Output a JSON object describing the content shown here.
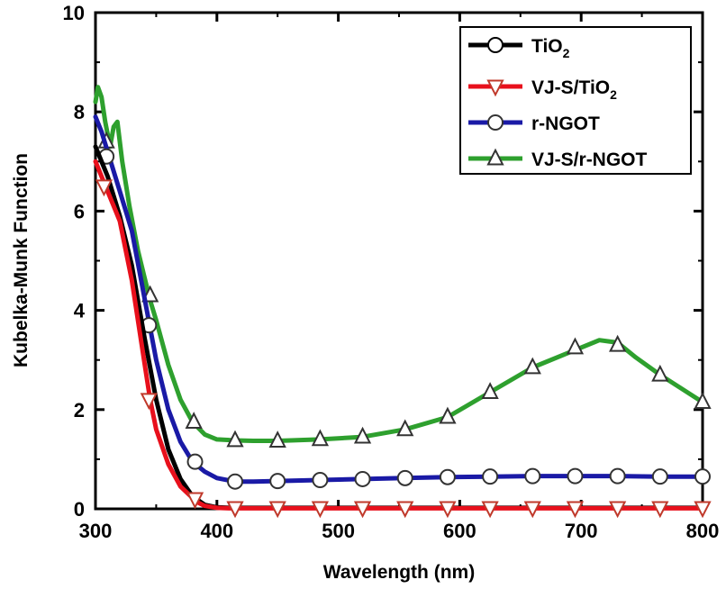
{
  "chart_data": {
    "type": "line",
    "title": "",
    "xlabel": "Wavelength (nm)",
    "ylabel": "Kubelka-Munk Function",
    "xlim": [
      300,
      800
    ],
    "ylim": [
      0,
      10
    ],
    "xticks": [
      300,
      400,
      500,
      600,
      700,
      800
    ],
    "yticks": [
      0,
      2,
      4,
      6,
      8,
      10
    ],
    "legend_position": "top-right",
    "series": [
      {
        "name": "TiO2",
        "legend_main": "TiO",
        "legend_sub": "2",
        "color": "#000000",
        "marker": "circle",
        "x": [
          300,
          310,
          320,
          330,
          340,
          350,
          360,
          370,
          380,
          390,
          400,
          410,
          430,
          460,
          500,
          550,
          600,
          650,
          700,
          750,
          800
        ],
        "y": [
          7.3,
          6.7,
          5.9,
          4.9,
          3.5,
          2.2,
          1.2,
          0.6,
          0.25,
          0.08,
          0.03,
          0.02,
          0.02,
          0.02,
          0.02,
          0.02,
          0.02,
          0.02,
          0.02,
          0.02,
          0.02
        ],
        "marker_x": [],
        "marker_y": []
      },
      {
        "name": "VJ-S/TiO2",
        "legend_main": "VJ-S/TiO",
        "legend_sub": "2",
        "color": "#e8101c",
        "marker": "triangle-down",
        "x": [
          300,
          305,
          310,
          320,
          330,
          340,
          345,
          350,
          360,
          370,
          380,
          385,
          390,
          400,
          410,
          430,
          460,
          500,
          550,
          600,
          650,
          700,
          750,
          800
        ],
        "y": [
          7.0,
          6.7,
          6.4,
          5.8,
          4.6,
          3.0,
          2.2,
          1.6,
          0.9,
          0.45,
          0.22,
          0.12,
          0.06,
          0.02,
          0.01,
          0.01,
          0.01,
          0.01,
          0.01,
          0.01,
          0.01,
          0.01,
          0.01,
          0.01
        ],
        "marker_x": [
          307,
          344,
          382,
          415,
          450,
          485,
          520,
          555,
          590,
          625,
          660,
          695,
          730,
          765,
          800
        ],
        "marker_y": [
          6.5,
          2.2,
          0.2,
          0.02,
          0.02,
          0.02,
          0.02,
          0.02,
          0.02,
          0.02,
          0.02,
          0.02,
          0.02,
          0.02,
          0.02
        ]
      },
      {
        "name": "r-NGOT",
        "legend_main": "r-NGOT",
        "legend_sub": "",
        "color": "#1a1aa6",
        "marker": "circle",
        "x": [
          300,
          305,
          310,
          320,
          330,
          340,
          350,
          360,
          370,
          380,
          390,
          400,
          415,
          430,
          450,
          485,
          520,
          555,
          590,
          625,
          660,
          695,
          730,
          765,
          800
        ],
        "y": [
          7.9,
          7.6,
          7.2,
          6.4,
          5.6,
          4.3,
          3.0,
          2.0,
          1.35,
          0.95,
          0.75,
          0.62,
          0.55,
          0.55,
          0.56,
          0.58,
          0.6,
          0.62,
          0.64,
          0.65,
          0.66,
          0.66,
          0.66,
          0.65,
          0.65
        ],
        "marker_x": [
          309,
          344,
          382,
          415,
          450,
          485,
          520,
          555,
          590,
          625,
          660,
          695,
          730,
          765,
          800
        ],
        "marker_y": [
          7.1,
          3.7,
          0.95,
          0.55,
          0.56,
          0.58,
          0.6,
          0.62,
          0.64,
          0.65,
          0.66,
          0.66,
          0.66,
          0.65,
          0.65
        ]
      },
      {
        "name": "VJ-S/r-NGOT",
        "legend_main": "VJ-S/r-NGOT",
        "legend_sub": "",
        "color": "#2ea02e",
        "marker": "triangle-up",
        "x": [
          300,
          302,
          305,
          308,
          312,
          315,
          318,
          322,
          328,
          335,
          340,
          345,
          350,
          360,
          370,
          380,
          390,
          400,
          415,
          430,
          450,
          485,
          520,
          555,
          590,
          625,
          660,
          695,
          715,
          730,
          745,
          765,
          800
        ],
        "y": [
          8.2,
          8.5,
          8.3,
          7.8,
          7.3,
          7.7,
          7.8,
          7.0,
          6.1,
          5.2,
          4.7,
          4.2,
          3.8,
          2.9,
          2.2,
          1.75,
          1.5,
          1.4,
          1.38,
          1.37,
          1.37,
          1.4,
          1.45,
          1.6,
          1.85,
          2.35,
          2.85,
          3.2,
          3.4,
          3.35,
          3.05,
          2.7,
          2.15
        ],
        "marker_x": [
          309,
          345,
          381,
          415,
          450,
          485,
          520,
          555,
          590,
          625,
          660,
          695,
          730,
          765,
          800
        ],
        "marker_y": [
          7.4,
          4.3,
          1.75,
          1.38,
          1.37,
          1.4,
          1.45,
          1.6,
          1.85,
          2.35,
          2.85,
          3.25,
          3.3,
          2.7,
          2.15
        ]
      }
    ]
  }
}
